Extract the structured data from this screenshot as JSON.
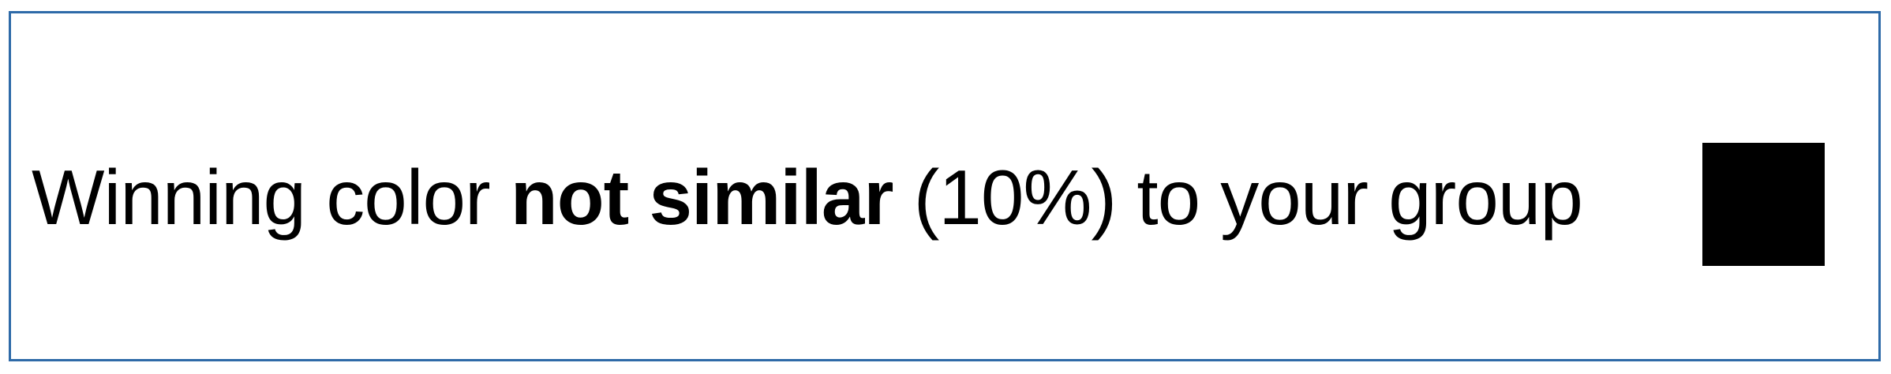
{
  "message": {
    "part1": "Winning color ",
    "emphasis": "not similar",
    "part2": " (10%) to your group"
  },
  "swatch": {
    "color": "#000000"
  },
  "colors": {
    "border": "#2e6aa8",
    "background": "#ffffff",
    "text": "#000000"
  }
}
